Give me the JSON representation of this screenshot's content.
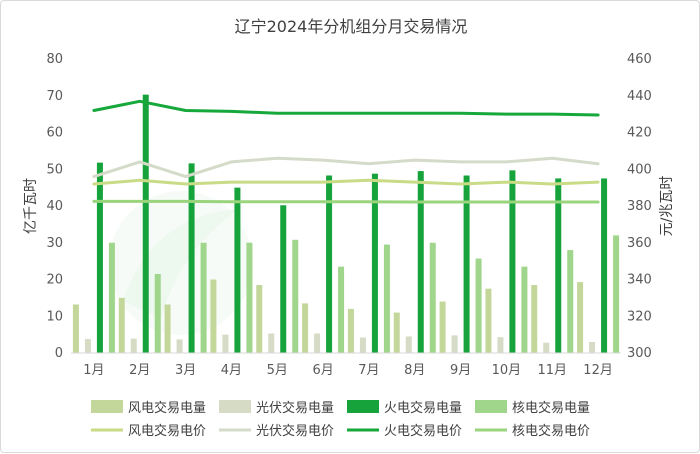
{
  "colors": {
    "wind_volume": "#c4d79b",
    "solar_volume": "#d6dbc6",
    "thermal_volume": "#17a33b",
    "nuclear_volume": "#9fd68b",
    "wind_price": "#c9db86",
    "solar_price": "#d5dbc9",
    "thermal_price": "#16a83a",
    "nuclear_price": "#9ad47d",
    "axis": "#d9d9d9",
    "grid": "#e5e5e5"
  },
  "chart_data": {
    "type": "bar",
    "title": "辽宁2024年分机组分月交易情况",
    "xlabel": "",
    "ylabel": "亿千瓦时",
    "y2label": "元/兆瓦时",
    "categories": [
      "1月",
      "2月",
      "3月",
      "4月",
      "5月",
      "6月",
      "7月",
      "8月",
      "9月",
      "10月",
      "11月",
      "12月"
    ],
    "ylim": [
      0,
      80
    ],
    "yticks": [
      0,
      10,
      20,
      30,
      40,
      50,
      60,
      70,
      80
    ],
    "y2lim": [
      300,
      460
    ],
    "y2ticks": [
      300,
      320,
      340,
      360,
      380,
      400,
      420,
      440,
      460
    ],
    "grid": false,
    "legend_position": "bottom",
    "bar_series": [
      {
        "name": "风电交易电量",
        "key": "wind_volume",
        "values": [
          13.2,
          15.0,
          13.2,
          20.0,
          18.5,
          13.5,
          12.0,
          11.0,
          14.0,
          17.5,
          18.5,
          19.3
        ]
      },
      {
        "name": "光伏交易电量",
        "key": "solar_volume",
        "values": [
          3.8,
          3.9,
          3.7,
          5.0,
          5.3,
          5.3,
          4.2,
          4.5,
          4.8,
          4.3,
          2.8,
          3.0
        ]
      },
      {
        "name": "火电交易电量",
        "key": "thermal_volume",
        "values": [
          51.8,
          70.3,
          51.6,
          45.0,
          40.2,
          48.3,
          48.8,
          49.5,
          48.3,
          49.7,
          47.5,
          47.5
        ]
      },
      {
        "name": "核电交易电量",
        "key": "nuclear_volume",
        "values": [
          30.0,
          21.5,
          30.0,
          30.0,
          30.8,
          23.5,
          29.5,
          30.0,
          25.7,
          23.5,
          28.0,
          32.0
        ]
      }
    ],
    "line_series": [
      {
        "name": "风电交易电价",
        "key": "wind_price",
        "axis": "right",
        "values": [
          392,
          394,
          392,
          393,
          393,
          393,
          394,
          393,
          392,
          393,
          392,
          393
        ]
      },
      {
        "name": "光伏交易电价",
        "key": "solar_price",
        "axis": "right",
        "values": [
          396,
          404,
          396,
          404,
          406,
          405,
          403,
          405,
          404,
          404,
          406,
          403
        ]
      },
      {
        "name": "火电交易电价",
        "key": "thermal_price",
        "axis": "right",
        "values": [
          432,
          437,
          432,
          431.5,
          430.5,
          430.5,
          430.5,
          430.5,
          430.5,
          430,
          430,
          429.5
        ]
      },
      {
        "name": "核电交易电价",
        "key": "nuclear_price",
        "axis": "right",
        "values": [
          382.5,
          382.5,
          382.5,
          382.3,
          382.3,
          382.3,
          382.3,
          382.2,
          382.2,
          382.2,
          382.2,
          382.2
        ]
      }
    ]
  }
}
